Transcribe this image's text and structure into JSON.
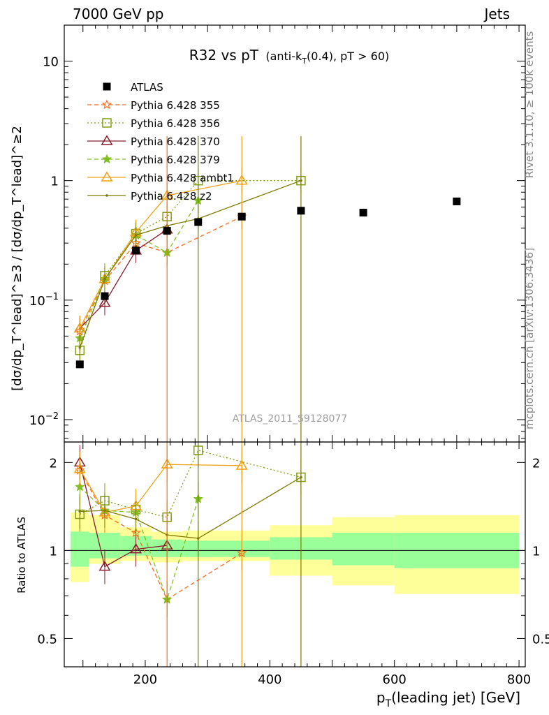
{
  "header": {
    "left": "7000 GeV pp",
    "right": "Jets"
  },
  "side_labels": {
    "rivet": "Rivet 3.1.10, ≥ 100k events",
    "mcplots": "mcplots.cern.ch [arXiv:1306.3436]"
  },
  "chart_data": {
    "type": "scatter",
    "title_main": "R32 vs pT",
    "title_sub_pre": "(anti-k",
    "title_sub_sub": "T",
    "title_sub_post": "(0.4), pT > 60)",
    "watermark": "ATLAS_2011_S9128077",
    "xlabel_pre": "p",
    "xlabel_sub": "T",
    "xlabel_post": "(leading jet) [GeV]",
    "ylabel": "[dσ/dp_T^lead]^≥3 / [dσ/dp_T^lead]^≥2",
    "ratio_ylabel": "Ratio to ATLAS",
    "xlim": [
      70,
      810
    ],
    "ylim": [
      0.0065,
      20
    ],
    "ratio_ylim": [
      0.4,
      2.35
    ],
    "x_ticks": [
      200,
      400,
      600,
      800
    ],
    "y_ticks": [
      "10^-2",
      "10^-1",
      "1",
      "10"
    ],
    "ratio_ticks": [
      "0.5",
      "1",
      "2"
    ],
    "data": {
      "name": "ATLAS",
      "x": [
        95,
        135,
        185,
        235,
        285,
        355,
        450,
        550,
        700
      ],
      "y": [
        0.029,
        0.108,
        0.26,
        0.38,
        0.45,
        0.5,
        0.56,
        0.54,
        0.67
      ]
    },
    "bands": [
      {
        "x0": 80,
        "x1": 110,
        "yellow": [
          0.78,
          1.35
        ],
        "green": [
          0.88,
          1.16
        ]
      },
      {
        "x0": 110,
        "x1": 160,
        "yellow": [
          0.9,
          1.32
        ],
        "green": [
          0.94,
          1.15
        ]
      },
      {
        "x0": 160,
        "x1": 210,
        "yellow": [
          0.92,
          1.2
        ],
        "green": [
          0.96,
          1.12
        ]
      },
      {
        "x0": 210,
        "x1": 260,
        "yellow": [
          0.91,
          1.16
        ],
        "green": [
          0.95,
          1.09
        ]
      },
      {
        "x0": 260,
        "x1": 310,
        "yellow": [
          0.92,
          1.17
        ],
        "green": [
          0.95,
          1.08
        ]
      },
      {
        "x0": 310,
        "x1": 400,
        "yellow": [
          0.92,
          1.17
        ],
        "green": [
          0.95,
          1.08
        ]
      },
      {
        "x0": 400,
        "x1": 500,
        "yellow": [
          0.82,
          1.22
        ],
        "green": [
          0.93,
          1.11
        ]
      },
      {
        "x0": 500,
        "x1": 600,
        "yellow": [
          0.76,
          1.3
        ],
        "green": [
          0.89,
          1.15
        ]
      },
      {
        "x0": 600,
        "x1": 800,
        "yellow": [
          0.71,
          1.32
        ],
        "green": [
          0.87,
          1.15
        ]
      }
    ],
    "series": [
      {
        "name": "Pythia 6.428 355",
        "color": "#ff6a1a",
        "dash": "6,4",
        "marker": "star-open",
        "x": [
          95,
          135,
          185,
          235,
          355
        ],
        "y": [
          0.055,
          0.145,
          0.3,
          0.25,
          0.5
        ],
        "ratio": [
          1.88,
          1.32,
          1.15,
          0.68,
          0.98
        ]
      },
      {
        "name": "Pythia 6.428 356",
        "color": "#7f9f10",
        "dash": "2,3",
        "marker": "square-open",
        "x": [
          95,
          135,
          185,
          235,
          285,
          450
        ],
        "y": [
          0.038,
          0.16,
          0.36,
          0.5,
          1.0,
          1.0
        ],
        "ratio": [
          1.33,
          1.48,
          1.38,
          1.3,
          2.2,
          1.78
        ]
      },
      {
        "name": "Pythia 6.428 370",
        "color": "#8b1a2a",
        "dash": "",
        "marker": "triangle-open",
        "x": [
          95,
          135,
          185,
          235
        ],
        "y": [
          0.058,
          0.095,
          0.26,
          0.39
        ],
        "ratio": [
          2.0,
          0.88,
          1.01,
          1.04
        ]
      },
      {
        "name": "Pythia 6.428 379",
        "color": "#7fbf20",
        "dash": "6,4",
        "marker": "star",
        "x": [
          95,
          135,
          185,
          235,
          285
        ],
        "y": [
          0.048,
          0.15,
          0.35,
          0.25,
          0.68
        ],
        "ratio": [
          1.65,
          1.37,
          1.35,
          0.68,
          1.5
        ]
      },
      {
        "name": "Pythia 6.428 ambt1",
        "color": "#f0a010",
        "dash": "",
        "marker": "triangle-open",
        "x": [
          95,
          135,
          185,
          235,
          355
        ],
        "y": [
          0.058,
          0.15,
          0.37,
          0.75,
          1.0
        ],
        "ratio": [
          1.9,
          1.35,
          1.42,
          1.97,
          1.95
        ]
      },
      {
        "name": "Pythia 6.428 z2",
        "color": "#7f7a00",
        "dash": "",
        "marker": "dot",
        "x": [
          95,
          135,
          185,
          235,
          285,
          450
        ],
        "y": [
          0.04,
          0.15,
          0.35,
          0.42,
          0.48,
          1.0
        ],
        "ratio": [
          1.36,
          1.37,
          1.28,
          1.13,
          1.1,
          1.78
        ]
      }
    ]
  }
}
